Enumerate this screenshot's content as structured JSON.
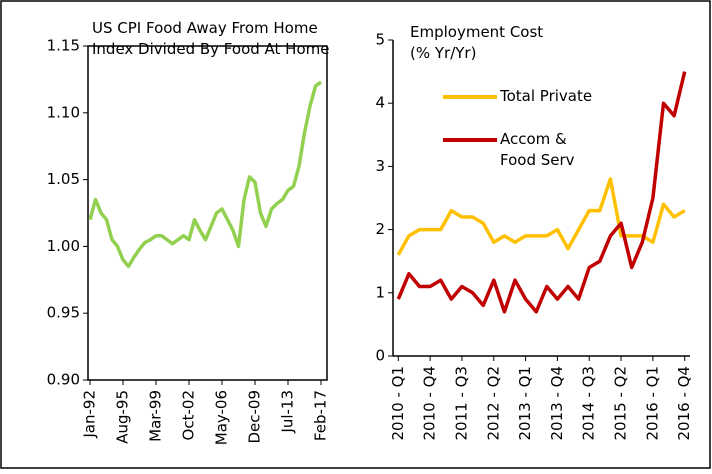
{
  "chart_data": [
    {
      "type": "line",
      "title": "US CPI Food Away From Home Index Divided By Food At Home",
      "categories": [
        "Jan-92",
        null,
        null,
        null,
        null,
        null,
        "Aug-95",
        null,
        null,
        null,
        null,
        null,
        "Mar-99",
        null,
        null,
        null,
        null,
        null,
        "Oct-02",
        null,
        null,
        null,
        null,
        null,
        "May-06",
        null,
        null,
        null,
        null,
        null,
        "Dec-09",
        null,
        null,
        null,
        null,
        null,
        "Jul-13",
        null,
        null,
        null,
        null,
        null,
        "Feb-17"
      ],
      "series": [
        {
          "name": "US CPI Food Away From Home Index Divided By Food At Home",
          "color": "#92d050",
          "values": [
            1.02,
            1.035,
            1.025,
            1.02,
            1.005,
            1.0,
            0.99,
            0.985,
            0.992,
            0.998,
            1.003,
            1.005,
            1.008,
            1.008,
            1.005,
            1.002,
            1.005,
            1.008,
            1.005,
            1.02,
            1.012,
            1.005,
            1.015,
            1.025,
            1.028,
            1.02,
            1.012,
            1.0,
            1.035,
            1.052,
            1.048,
            1.025,
            1.015,
            1.028,
            1.032,
            1.035,
            1.042,
            1.045,
            1.06,
            1.085,
            1.105,
            1.12,
            1.123
          ]
        }
      ],
      "ylim": [
        0.9,
        1.15
      ],
      "yticks": [
        {
          "value": 0.9,
          "label": "0.90"
        },
        0.95,
        {
          "value": 1.0,
          "label": "1.00"
        },
        1.05,
        {
          "value": 1.1,
          "label": "1.10"
        },
        1.15
      ]
    },
    {
      "type": "line",
      "title": "Employment Cost (% Yr/Yr)",
      "categories": [
        "2010 - Q1",
        null,
        null,
        "2010 - Q4",
        null,
        null,
        "2011 - Q3",
        null,
        null,
        "2012 - Q2",
        null,
        null,
        "2013 - Q1",
        null,
        null,
        "2013 - Q4",
        null,
        null,
        "2014 - Q3",
        null,
        null,
        "2015 - Q2",
        null,
        null,
        "2016 - Q1",
        null,
        null,
        "2016 - Q4"
      ],
      "series": [
        {
          "name": "Total Private",
          "color": "#ffc000",
          "values": [
            1.6,
            1.9,
            2.0,
            2.0,
            2.0,
            2.3,
            2.2,
            2.2,
            2.1,
            1.8,
            1.9,
            1.8,
            1.9,
            1.9,
            1.9,
            2.0,
            1.7,
            2.0,
            2.3,
            2.3,
            2.8,
            1.9,
            1.9,
            1.9,
            1.8,
            2.4,
            2.2,
            2.3
          ]
        },
        {
          "name": "Accom & Food Serv",
          "color": "#c00000",
          "values": [
            0.9,
            1.3,
            1.1,
            1.1,
            1.2,
            0.9,
            1.1,
            1.0,
            0.8,
            1.2,
            0.7,
            1.2,
            0.9,
            0.7,
            1.1,
            0.9,
            1.1,
            0.9,
            1.4,
            1.5,
            1.9,
            2.1,
            1.4,
            1.8,
            2.5,
            4.0,
            3.8,
            4.5
          ]
        }
      ],
      "ylim": [
        0,
        5
      ],
      "yticks": [
        0,
        1,
        2,
        3,
        4,
        5
      ]
    }
  ]
}
